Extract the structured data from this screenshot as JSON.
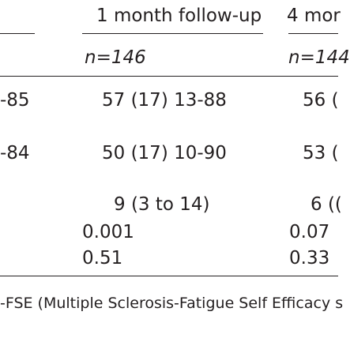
{
  "header": {
    "col2": "1 month follow-up",
    "col3": "4 mor"
  },
  "n_row": {
    "col2": "n=146",
    "col3": "n=144"
  },
  "rows": [
    {
      "col1": "-85",
      "col2": "57 (17) 13-88",
      "col3": "56 ("
    },
    {
      "col1": "-84",
      "col2": "50 (17) 10-90",
      "col3": "53 ("
    }
  ],
  "difference": {
    "col2": "9 (3 to 14)",
    "col3": "6 (("
  },
  "p_value": {
    "col2": "0.001",
    "col3": "0.07"
  },
  "effect": {
    "col2": "0.51",
    "col3": "0.33"
  },
  "footnote": "-FSE (Multiple Sclerosis-Fatigue Self Efficacy s"
}
